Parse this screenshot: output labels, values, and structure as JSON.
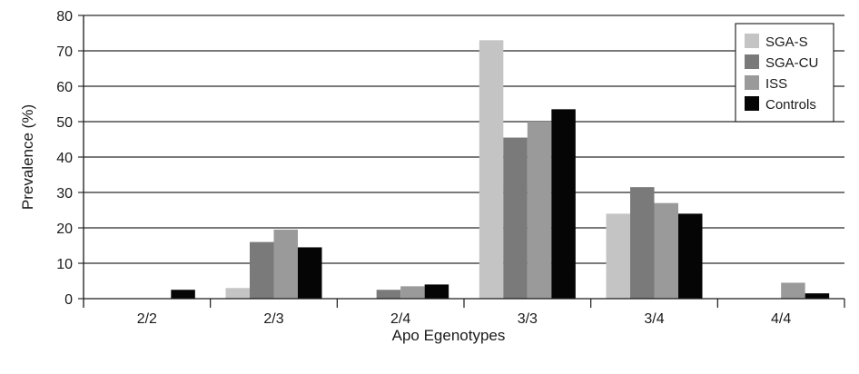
{
  "chart_data": {
    "type": "bar",
    "title": "",
    "xlabel": "Apo Egenotypes",
    "ylabel": "Prevalence (%)",
    "ylim": [
      0,
      80
    ],
    "yticks": [
      0,
      10,
      20,
      30,
      40,
      50,
      60,
      70,
      80
    ],
    "grid": true,
    "legend_position": "top-right",
    "categories": [
      "2/2",
      "2/3",
      "2/4",
      "3/3",
      "3/4",
      "4/4"
    ],
    "series": [
      {
        "name": "SGA-S",
        "color": "#c4c4c4",
        "values": [
          0,
          3,
          0,
          73,
          24,
          0
        ]
      },
      {
        "name": "SGA-CU",
        "color": "#7a7a7a",
        "values": [
          0,
          16,
          2.5,
          45.5,
          31.5,
          0
        ]
      },
      {
        "name": "ISS",
        "color": "#9a9a9a",
        "values": [
          0,
          19.5,
          3.5,
          50,
          27,
          4.5
        ]
      },
      {
        "name": "Controls",
        "color": "#050505",
        "values": [
          2.5,
          14.5,
          4,
          53.5,
          24,
          1.5
        ]
      }
    ]
  }
}
